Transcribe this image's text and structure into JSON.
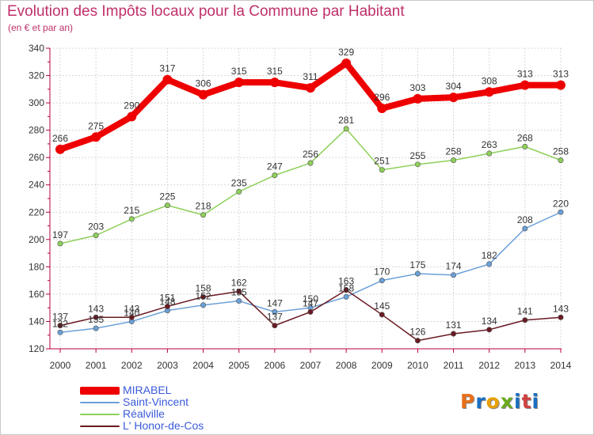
{
  "header": {
    "title": "Evolution des Impôts locaux pour la Commune par Habitant",
    "subtitle": "(en € et par an)"
  },
  "brand": {
    "letters": [
      "P",
      "r",
      "o",
      "x",
      "i",
      "t",
      "i"
    ]
  },
  "colors": {
    "title": "#c0306a",
    "axis": "#b8003a",
    "grid": "#d8d8d8",
    "legend_text": "#3a5bd8",
    "logo": [
      "#e8701a",
      "#1a6ec0",
      "#e8a000",
      "#6aaa1e",
      "#1a6ec0",
      "#d04040",
      "#1a6ec0"
    ]
  },
  "chart_data": {
    "type": "line",
    "title": "Evolution des Impôts locaux pour la Commune par Habitant",
    "subtitle": "(en € et par an)",
    "xlabel": "",
    "ylabel": "",
    "x": [
      2000,
      2001,
      2002,
      2003,
      2004,
      2005,
      2006,
      2007,
      2008,
      2009,
      2010,
      2011,
      2012,
      2013,
      2014
    ],
    "ylim": [
      120,
      340
    ],
    "yticks": [
      120,
      140,
      160,
      180,
      200,
      220,
      240,
      260,
      280,
      300,
      320,
      340
    ],
    "grid": true,
    "legend": "bottom-left",
    "series": [
      {
        "name": "MIRABEL",
        "color": "#ee0000",
        "values": [
          266,
          275,
          290,
          317,
          306,
          315,
          315,
          311,
          329,
          296,
          303,
          304,
          308,
          313,
          313
        ]
      },
      {
        "name": "Saint-Vincent",
        "color": "#6aa0d8",
        "values": [
          132,
          135,
          140,
          148,
          152,
          155,
          147,
          150,
          158,
          170,
          175,
          174,
          182,
          208,
          220
        ]
      },
      {
        "name": "Réalville",
        "color": "#8ed05a",
        "values": [
          197,
          203,
          215,
          225,
          218,
          235,
          247,
          256,
          281,
          251,
          255,
          258,
          263,
          268,
          258
        ]
      },
      {
        "name": "L' Honor-de-Cos",
        "color": "#6a1a22",
        "values": [
          137,
          143,
          143,
          151,
          158,
          162,
          137,
          147,
          163,
          145,
          126,
          131,
          134,
          141,
          143
        ]
      }
    ]
  }
}
